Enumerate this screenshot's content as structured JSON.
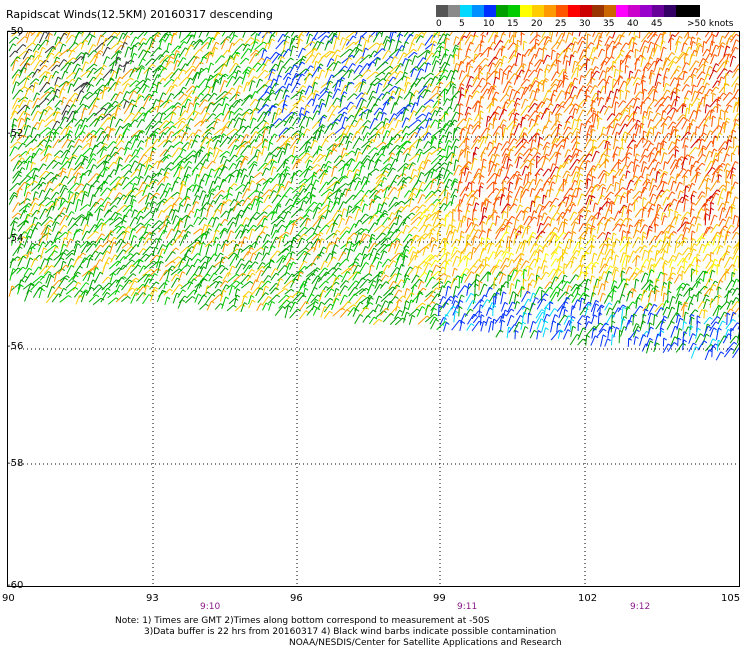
{
  "title": "Rapidscat Winds(12.5KM) 20160317 descending",
  "legend": {
    "colors": [
      "#555555",
      "#8a8a8a",
      "#00d8ff",
      "#0090ff",
      "#0030ff",
      "#00a000",
      "#00cc00",
      "#ffff00",
      "#ffcc00",
      "#ff9900",
      "#ff5500",
      "#ff0000",
      "#cc0000",
      "#993300",
      "#cc6600",
      "#ff00ff",
      "#cc00cc",
      "#9900cc",
      "#660099",
      "#330066",
      "#000000",
      "#000000"
    ],
    "labels": [
      "0",
      "5",
      "10",
      "15",
      "20",
      "25",
      "30",
      "35",
      "40",
      "45",
      ">50 knots"
    ]
  },
  "y_labels": [
    "-50",
    "-52",
    "-54",
    "-56",
    "-58",
    "-60"
  ],
  "x_labels": [
    "90",
    "93",
    "96",
    "99",
    "102",
    "105"
  ],
  "time_labels": [
    "9:10",
    "9:11",
    "9:12"
  ],
  "notes": [
    "Note: 1) Times are GMT 2)Times along bottom correspond to measurement at -50S",
    "3)Data buffer is 22 hrs from 20160317 4) Black wind barbs indicate possible contamination",
    "NOAA/NESDIS/Center for Satellite Applications and Research"
  ]
}
